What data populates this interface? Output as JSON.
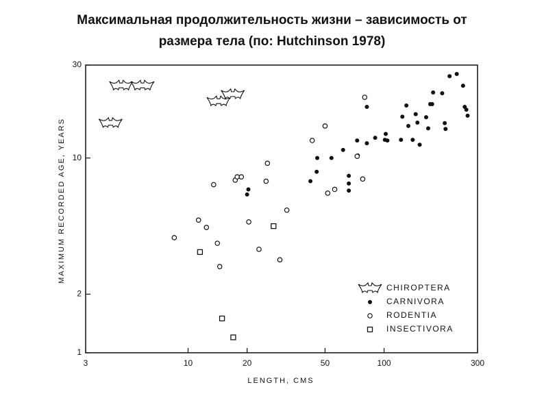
{
  "chart_data": {
    "type": "scatter",
    "title": [
      "Максимальная продолжительность жизни – зависимость от",
      "размера тела (по: Hutchinson 1978)"
    ],
    "xlabel": "LENGTH, CMS",
    "ylabel": "MAXIMUM RECORDED AGE, YEARS",
    "xscale": "log",
    "yscale": "log",
    "xlim": [
      3,
      300
    ],
    "ylim": [
      1,
      30
    ],
    "xticks": [
      3,
      10,
      20,
      50,
      100,
      300
    ],
    "yticks": [
      1,
      2,
      10,
      30
    ],
    "legend": "lower right",
    "grid": false,
    "series": [
      {
        "name": "CHIROPTERA",
        "marker": "bat",
        "color": "#111111",
        "x": [
          4.55,
          5.85,
          4.02,
          14.3,
          16.9
        ],
        "values": [
          23.5,
          23.5,
          15.1,
          19.5,
          21.2
        ]
      },
      {
        "name": "CARNIVORA",
        "marker": "dot",
        "color": "#111111",
        "x": [
          20.0,
          20.3,
          42.1,
          45.3,
          45.6,
          53.9,
          61.8,
          66.1,
          66.1,
          66.1,
          72.9,
          73.5,
          81.7,
          81.7,
          90.1,
          101,
          102,
          104,
          122,
          124,
          130,
          133,
          140,
          145,
          148,
          152,
          164,
          168,
          172,
          176,
          178,
          198,
          204,
          206,
          216,
          235,
          253,
          258,
          263,
          267
        ],
        "values": [
          6.5,
          6.9,
          7.6,
          8.5,
          10.0,
          10.0,
          11.0,
          6.8,
          7.4,
          8.1,
          12.3,
          10.3,
          18.3,
          11.9,
          12.7,
          12.4,
          13.3,
          12.3,
          12.4,
          16.3,
          18.6,
          14.6,
          12.4,
          16.8,
          15.2,
          11.7,
          16.2,
          14.2,
          18.9,
          18.9,
          21.7,
          21.5,
          15.1,
          14.1,
          26.3,
          27.0,
          23.5,
          18.3,
          17.7,
          16.5
        ]
      },
      {
        "name": "RODENTIA",
        "marker": "circle",
        "color": "#111111",
        "x": [
          8.5,
          11.3,
          12.4,
          13.5,
          14.1,
          14.5,
          17.4,
          17.8,
          18.7,
          20.4,
          23.0,
          25.0,
          25.4,
          29.4,
          31.9,
          43.0,
          50.0,
          51.6,
          56.0,
          72.9,
          77.8,
          79.7
        ],
        "values": [
          3.9,
          4.8,
          4.4,
          7.3,
          3.65,
          2.77,
          7.7,
          8.0,
          8.0,
          4.7,
          3.4,
          7.6,
          9.4,
          3.0,
          5.4,
          12.3,
          14.6,
          6.6,
          6.9,
          10.2,
          7.8,
          20.5
        ]
      },
      {
        "name": "INSECTIVORA",
        "marker": "square",
        "color": "#111111",
        "x": [
          11.5,
          14.9,
          17.0,
          27.3
        ],
        "values": [
          3.29,
          1.5,
          1.2,
          4.47
        ]
      }
    ]
  }
}
